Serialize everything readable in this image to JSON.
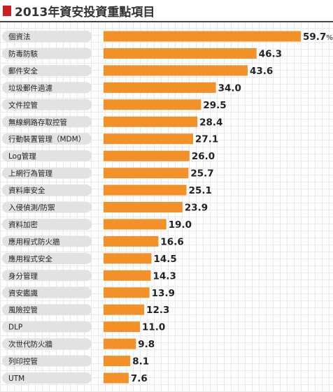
{
  "title": "2013年資安投資重點項目",
  "colors": {
    "bar": "#f39129",
    "pill": "#e2e2e2",
    "title_mark": "#cc1f1f"
  },
  "chart_data": {
    "type": "bar",
    "orientation": "horizontal",
    "title": "2013年資安投資重點項目",
    "unit_suffix": "%",
    "categories": [
      "個資法",
      "防毒防駭",
      "郵件安全",
      "垃圾郵件過濾",
      "文件控管",
      "無線網路存取控管",
      "行動裝置管理（MDM）",
      "Log管理",
      "上網行為管理",
      "資料庫安全",
      "入侵偵測/防禦",
      "資料加密",
      "應用程式防火牆",
      "應用程式安全",
      "身分管理",
      "資安鑑識",
      "風險控管",
      "DLP",
      "次世代防火牆",
      "列印控管",
      "UTM"
    ],
    "values": [
      59.7,
      46.3,
      43.6,
      34.0,
      29.5,
      28.4,
      27.1,
      26.0,
      25.7,
      25.1,
      23.9,
      19.0,
      16.6,
      14.5,
      14.3,
      13.9,
      12.3,
      11.0,
      9.8,
      8.1,
      7.6
    ],
    "value_labels": [
      "59.7",
      "46.3",
      "43.6",
      "34.0",
      "29.5",
      "28.4",
      "27.1",
      "26.0",
      "25.7",
      "25.1",
      "23.9",
      "19.0",
      "16.6",
      "14.5",
      "14.3",
      "13.9",
      "12.3",
      "11.0",
      "9.8",
      "8.1",
      "7.6"
    ],
    "xlim": [
      0,
      59.7
    ],
    "grid": true
  }
}
